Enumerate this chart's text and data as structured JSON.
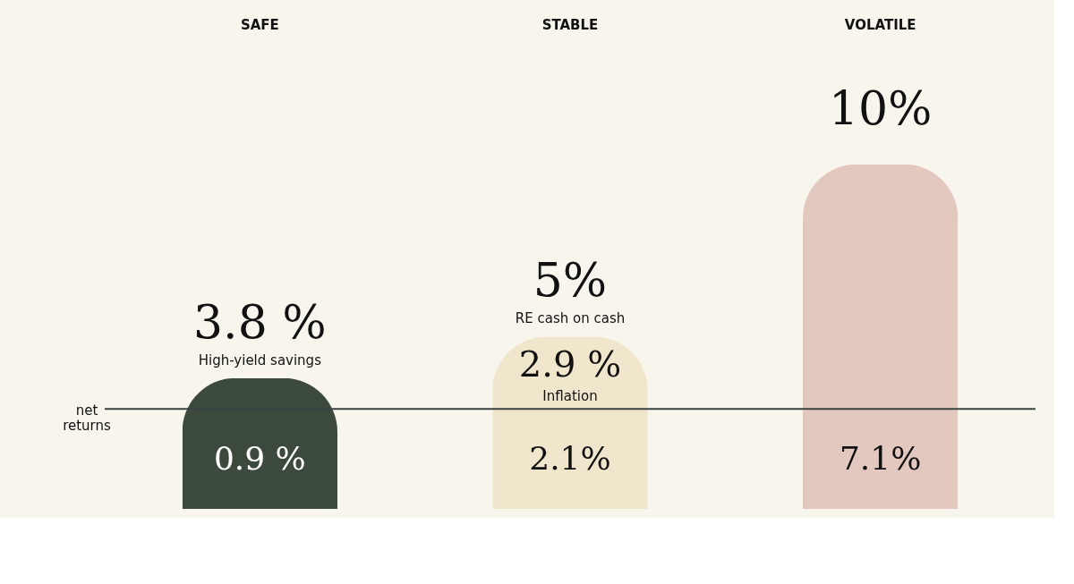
{
  "chart_data": {
    "type": "bar",
    "categories": [
      "SAFE",
      "STABLE",
      "VOLATILE"
    ],
    "values": [
      3.8,
      5,
      10
    ],
    "value_labels": [
      "3.8 %",
      "5%",
      "10%"
    ],
    "colors": [
      "#3b4a3d",
      "#efe6cc",
      "#e3c8bf"
    ],
    "ref_lines": [
      {
        "axis": "y",
        "value": 2.9,
        "label": "Inflation",
        "color": "#3a4340"
      }
    ],
    "annotations": [
      "High-yield savings",
      "RE cash on cash",
      "2.9 %",
      "0.9 %",
      "2.1%",
      "7.1%",
      "net returns"
    ]
  }
}
